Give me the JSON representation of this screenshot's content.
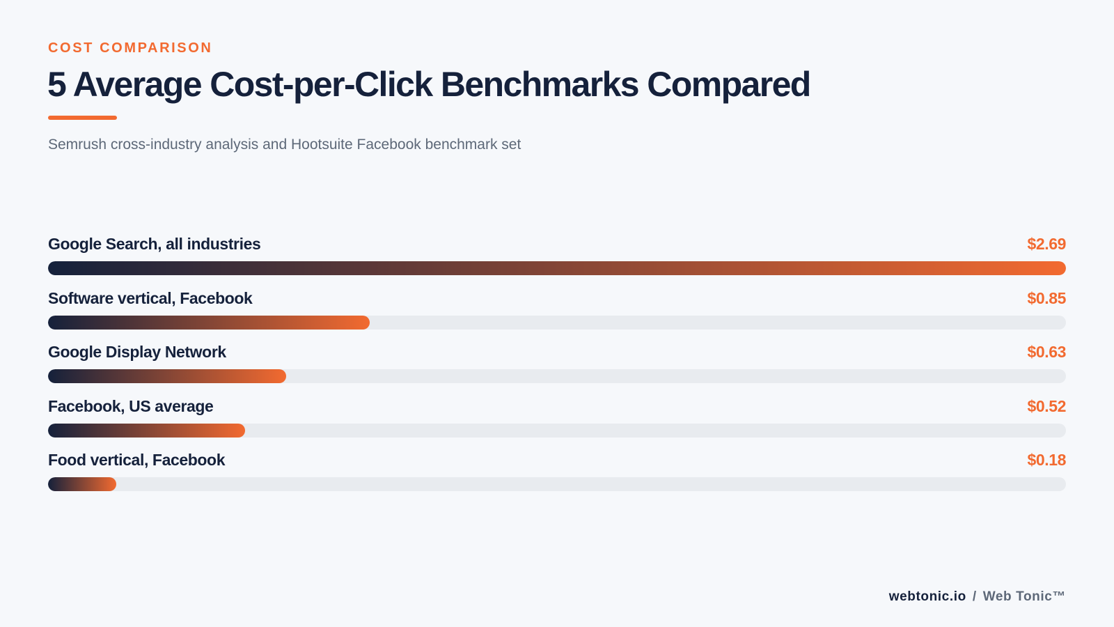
{
  "header": {
    "eyebrow": "COST COMPARISON",
    "title": "5 Average Cost-per-Click Benchmarks Compared",
    "subtitle": "Semrush cross-industry analysis and Hootsuite Facebook benchmark set"
  },
  "colors": {
    "accent": "#f26a30",
    "navy": "#15213b",
    "track": "#e8ebef",
    "background": "#f6f8fb"
  },
  "chart_data": {
    "type": "bar",
    "orientation": "horizontal",
    "categories": [
      "Google Search, all industries",
      "Software vertical, Facebook",
      "Google Display Network",
      "Facebook, US average",
      "Food vertical, Facebook"
    ],
    "values": [
      2.69,
      0.85,
      0.63,
      0.52,
      0.18
    ],
    "value_labels": [
      "$2.69",
      "$0.85",
      "$0.63",
      "$0.52",
      "$0.18"
    ],
    "xlim": [
      0,
      2.69
    ],
    "grid": false,
    "legend": "none"
  },
  "footer": {
    "site": "webtonic.io",
    "separator": "/",
    "brand": "Web Tonic™"
  }
}
